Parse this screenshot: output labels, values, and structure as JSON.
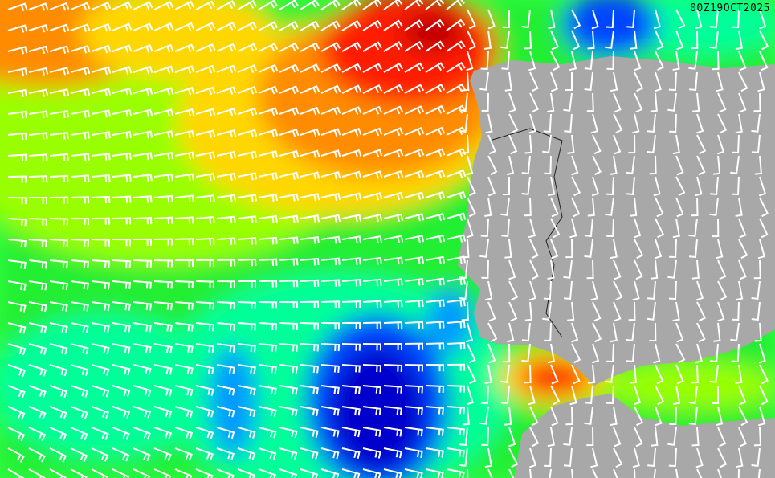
{
  "map": {
    "timestamp": "00Z19OCT2025",
    "field_colors": {
      "dark_red": "#c00000",
      "red": "#ff1a00",
      "orange": "#ff8c00",
      "yellow": "#ffd700",
      "yellow_green": "#99ff00",
      "green": "#22ee33",
      "aqua": "#00ff99",
      "light_blue": "#0099ff",
      "blue": "#0044ff",
      "dark_blue": "#0000cc",
      "land": "#a8a8a8",
      "barb": "#ffffff"
    }
  }
}
